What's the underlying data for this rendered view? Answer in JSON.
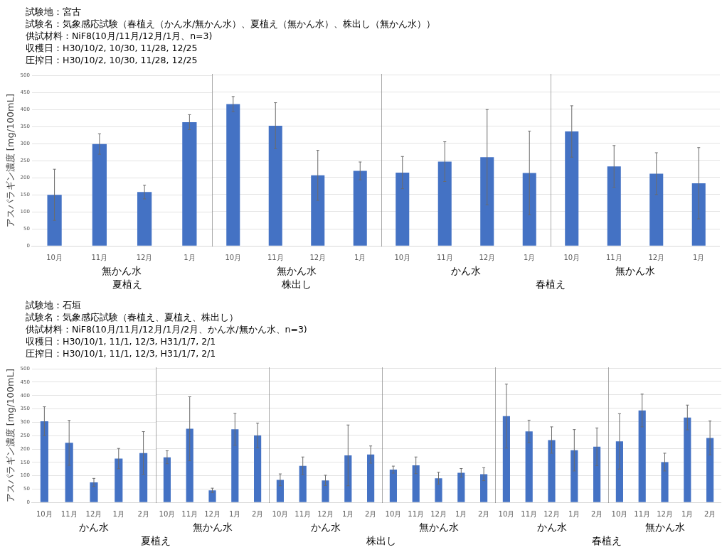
{
  "chart_data": [
    {
      "type": "bar",
      "title": "試験地：宮古",
      "subtitle": [
        "試験名：気象感応試験（春植え（かん水/無かん水）、夏植え（無かん水）、株出し（無かん水））",
        "供試材料：NiF8(10月/11月/12月/1月、n=3)",
        "収穫日：H30/10/2, 10/30, 11/28, 12/25",
        "圧搾日：H30/10/2, 10/30, 11/28, 12/25"
      ],
      "ylabel": "アスパラギン濃度 [mg/100mL]",
      "xlabel": "無かん水",
      "annotations": [
        "夏植え"
      ],
      "categories": [
        "10月",
        "11月",
        "12月",
        "1月"
      ],
      "values": [
        150,
        299,
        158,
        363
      ],
      "errors": [
        75,
        30,
        20,
        22
      ],
      "color": "#4472c4",
      "ylim": [
        0,
        500
      ],
      "yticks": [
        0,
        50,
        100,
        150,
        200,
        250,
        300,
        350,
        400,
        450,
        500
      ],
      "grid": "y"
    },
    {
      "type": "bar",
      "xlabel": "無かん水",
      "annotations": [
        "株出し"
      ],
      "categories": [
        "10月",
        "11月",
        "12月",
        "1月"
      ],
      "values": [
        414,
        351,
        206,
        219
      ],
      "errors": [
        22,
        67,
        73,
        26
      ],
      "color": "#4472c4",
      "ylim": [
        0,
        500
      ],
      "yticks": [
        0,
        50,
        100,
        150,
        200,
        250,
        300,
        350,
        400,
        450,
        500
      ],
      "grid": "y",
      "tick_labels": "x"
    },
    {
      "type": "bar",
      "xlabel": "かん水",
      "annotations": [
        "春植え"
      ],
      "categories": [
        "10月",
        "11月",
        "12月",
        "1月"
      ],
      "values": [
        214,
        246,
        259,
        213
      ],
      "errors": [
        47,
        58,
        139,
        122
      ],
      "color": "#4472c4",
      "ylim": [
        0,
        500
      ],
      "yticks": [
        0,
        50,
        100,
        150,
        200,
        250,
        300,
        350,
        400,
        450,
        500
      ],
      "grid": "y",
      "tick_labels": "x"
    },
    {
      "type": "bar",
      "xlabel": "無かん水",
      "categories": [
        "10月",
        "11月",
        "12月",
        "1月"
      ],
      "values": [
        334,
        232,
        211,
        183
      ],
      "errors": [
        75,
        61,
        61,
        104
      ],
      "color": "#4472c4",
      "ylim": [
        0,
        500
      ],
      "yticks": [
        0,
        50,
        100,
        150,
        200,
        250,
        300,
        350,
        400,
        450,
        500
      ],
      "grid": "y",
      "tick_labels": "x"
    },
    {
      "type": "bar",
      "title": "試験地：石垣",
      "subtitle": [
        "試験名：気象感応試験（春植え、夏植え、株出し）",
        "供試材料：NiF8(10月/11月/12月/1月/2月、かん水/無かん水、n=3)",
        "収穫日：H30/10/1, 11/1, 12/3, H31/1/7, 2/1",
        "圧搾日：H30/10/1, 11/1, 12/3, H31/1/7, 2/1"
      ],
      "ylabel": "アスパラギン濃度 [mg/100mL]",
      "xlabel": "かん水",
      "annotations": [
        "夏植え"
      ],
      "categories": [
        "10月",
        "11月",
        "12月",
        "1月",
        "2月"
      ],
      "values": [
        304,
        223,
        75,
        164,
        185
      ],
      "errors": [
        54,
        84,
        15,
        38,
        80
      ],
      "color": "#4472c4",
      "ylim": [
        0,
        500
      ],
      "yticks": [
        0,
        50,
        100,
        150,
        200,
        250,
        300,
        350,
        400,
        450,
        500
      ],
      "grid": "y"
    },
    {
      "type": "bar",
      "xlabel": "無かん水",
      "categories": [
        "10月",
        "11月",
        "12月",
        "1月",
        "2月"
      ],
      "values": [
        168,
        274,
        45,
        272,
        249
      ],
      "errors": [
        24,
        119,
        8,
        59,
        46
      ],
      "color": "#4472c4",
      "ylim": [
        0,
        500
      ],
      "yticks": [
        0,
        50,
        100,
        150,
        200,
        250,
        300,
        350,
        400,
        450,
        500
      ],
      "grid": "y",
      "tick_labels": "x"
    },
    {
      "type": "bar",
      "xlabel": "かん水",
      "annotations": [
        "株出し"
      ],
      "categories": [
        "10月",
        "11月",
        "12月",
        "1月",
        "2月"
      ],
      "values": [
        84,
        136,
        82,
        175,
        178
      ],
      "errors": [
        22,
        33,
        19,
        113,
        32
      ],
      "color": "#4472c4",
      "ylim": [
        0,
        500
      ],
      "yticks": [
        0,
        50,
        100,
        150,
        200,
        250,
        300,
        350,
        400,
        450,
        500
      ],
      "grid": "y",
      "tick_labels": "x"
    },
    {
      "type": "bar",
      "xlabel": "無かん水",
      "categories": [
        "10月",
        "11月",
        "12月",
        "1月",
        "2月"
      ],
      "values": [
        122,
        138,
        90,
        110,
        105
      ],
      "errors": [
        13,
        31,
        22,
        16,
        24
      ],
      "color": "#4472c4",
      "ylim": [
        0,
        500
      ],
      "yticks": [
        0,
        50,
        100,
        150,
        200,
        250,
        300,
        350,
        400,
        450,
        500
      ],
      "grid": "y",
      "tick_labels": "x"
    },
    {
      "type": "bar",
      "xlabel": "かん水",
      "annotations": [
        "春植え"
      ],
      "categories": [
        "10月",
        "11月",
        "12月",
        "1月",
        "2月"
      ],
      "values": [
        321,
        264,
        232,
        194,
        207
      ],
      "errors": [
        119,
        42,
        49,
        77,
        70
      ],
      "color": "#4472c4",
      "ylim": [
        0,
        500
      ],
      "yticks": [
        0,
        50,
        100,
        150,
        200,
        250,
        300,
        350,
        400,
        450,
        500
      ],
      "grid": "y",
      "tick_labels": "x"
    },
    {
      "type": "bar",
      "xlabel": "無かん水",
      "categories": [
        "10月",
        "11月",
        "12月",
        "1月",
        "2月"
      ],
      "values": [
        227,
        342,
        150,
        316,
        240
      ],
      "errors": [
        103,
        61,
        33,
        46,
        63
      ],
      "color": "#4472c4",
      "ylim": [
        0,
        500
      ],
      "yticks": [
        0,
        50,
        100,
        150,
        200,
        250,
        300,
        350,
        400,
        450,
        500
      ],
      "grid": "y",
      "tick_labels": "x"
    }
  ]
}
